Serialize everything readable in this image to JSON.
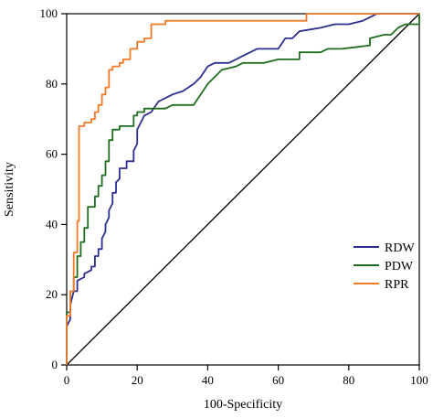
{
  "chart_data": {
    "type": "line",
    "title": "",
    "xlabel": "100-Specificity",
    "ylabel": "Sensitivity",
    "xlim": [
      0,
      100
    ],
    "ylim": [
      0,
      100
    ],
    "xticks": [
      0,
      20,
      40,
      60,
      80,
      100
    ],
    "yticks": [
      0,
      20,
      40,
      60,
      80,
      100
    ],
    "grid": false,
    "legend_position": "lower-right",
    "diagonal_reference": true,
    "series": [
      {
        "name": "RDW",
        "color": "#2b2f8f",
        "points": [
          [
            0,
            0
          ],
          [
            0,
            11
          ],
          [
            1,
            13
          ],
          [
            1,
            17
          ],
          [
            2,
            21
          ],
          [
            3,
            21
          ],
          [
            3,
            24
          ],
          [
            5,
            25
          ],
          [
            5,
            26
          ],
          [
            7,
            27
          ],
          [
            7,
            28
          ],
          [
            8,
            28
          ],
          [
            8,
            31
          ],
          [
            9,
            31
          ],
          [
            9,
            33
          ],
          [
            10,
            33
          ],
          [
            10,
            36
          ],
          [
            11,
            38
          ],
          [
            11,
            40
          ],
          [
            12,
            42
          ],
          [
            12,
            44
          ],
          [
            13,
            46
          ],
          [
            13,
            49
          ],
          [
            14,
            49
          ],
          [
            14,
            52
          ],
          [
            15,
            53
          ],
          [
            15,
            56
          ],
          [
            17,
            56
          ],
          [
            17,
            58
          ],
          [
            19,
            58
          ],
          [
            19,
            61
          ],
          [
            20,
            63
          ],
          [
            20,
            67
          ],
          [
            21,
            69
          ],
          [
            22,
            71
          ],
          [
            24,
            72
          ],
          [
            26,
            75
          ],
          [
            28,
            76
          ],
          [
            30,
            77
          ],
          [
            33,
            78
          ],
          [
            36,
            80
          ],
          [
            38,
            82
          ],
          [
            40,
            85
          ],
          [
            42,
            86
          ],
          [
            46,
            86
          ],
          [
            48,
            87
          ],
          [
            50,
            88
          ],
          [
            54,
            90
          ],
          [
            60,
            90
          ],
          [
            62,
            93
          ],
          [
            64,
            93
          ],
          [
            66,
            95
          ],
          [
            72,
            96
          ],
          [
            76,
            97
          ],
          [
            80,
            97
          ],
          [
            84,
            98
          ],
          [
            88,
            100
          ],
          [
            100,
            100
          ]
        ]
      },
      {
        "name": "PDW",
        "color": "#1f6e1f",
        "points": [
          [
            0,
            0
          ],
          [
            0,
            15
          ],
          [
            1,
            15
          ],
          [
            1,
            21
          ],
          [
            2,
            21
          ],
          [
            2,
            25
          ],
          [
            3,
            25
          ],
          [
            3,
            31
          ],
          [
            4,
            31
          ],
          [
            4,
            35
          ],
          [
            5,
            35
          ],
          [
            5,
            39
          ],
          [
            6,
            39
          ],
          [
            6,
            45
          ],
          [
            8,
            45
          ],
          [
            8,
            48
          ],
          [
            9,
            48
          ],
          [
            9,
            51
          ],
          [
            10,
            51
          ],
          [
            10,
            54
          ],
          [
            11,
            54
          ],
          [
            11,
            58
          ],
          [
            12,
            58
          ],
          [
            12,
            64
          ],
          [
            13,
            64
          ],
          [
            13,
            67
          ],
          [
            15,
            67
          ],
          [
            15,
            68
          ],
          [
            19,
            68
          ],
          [
            19,
            71
          ],
          [
            20,
            71
          ],
          [
            20,
            72
          ],
          [
            22,
            72
          ],
          [
            22,
            73
          ],
          [
            28,
            73
          ],
          [
            30,
            74
          ],
          [
            36,
            74
          ],
          [
            38,
            77
          ],
          [
            40,
            80
          ],
          [
            44,
            84
          ],
          [
            48,
            85
          ],
          [
            50,
            86
          ],
          [
            56,
            86
          ],
          [
            60,
            87
          ],
          [
            66,
            87
          ],
          [
            66,
            89
          ],
          [
            72,
            89
          ],
          [
            74,
            90
          ],
          [
            78,
            90
          ],
          [
            86,
            91
          ],
          [
            86,
            93
          ],
          [
            90,
            94
          ],
          [
            92,
            94
          ],
          [
            94,
            96
          ],
          [
            96,
            97
          ],
          [
            100,
            97
          ],
          [
            100,
            100
          ]
        ]
      },
      {
        "name": "RPR",
        "color": "#f07a28",
        "points": [
          [
            0,
            0
          ],
          [
            0,
            14
          ],
          [
            1,
            14
          ],
          [
            1,
            21
          ],
          [
            2,
            21
          ],
          [
            2,
            32
          ],
          [
            3,
            32
          ],
          [
            3,
            41
          ],
          [
            3.5,
            41
          ],
          [
            3.5,
            68
          ],
          [
            5,
            68
          ],
          [
            5,
            69
          ],
          [
            7,
            69
          ],
          [
            7,
            70
          ],
          [
            8,
            70
          ],
          [
            8,
            72
          ],
          [
            9,
            72
          ],
          [
            9,
            74
          ],
          [
            10,
            74
          ],
          [
            10,
            77
          ],
          [
            11,
            77
          ],
          [
            11,
            79
          ],
          [
            12,
            79
          ],
          [
            12,
            84
          ],
          [
            13,
            84
          ],
          [
            13,
            85
          ],
          [
            15,
            85
          ],
          [
            15,
            86
          ],
          [
            16,
            86
          ],
          [
            16,
            87
          ],
          [
            18,
            87
          ],
          [
            18,
            90
          ],
          [
            20,
            90
          ],
          [
            20,
            92
          ],
          [
            22,
            92
          ],
          [
            22,
            93
          ],
          [
            24,
            93
          ],
          [
            24,
            97
          ],
          [
            28,
            97
          ],
          [
            28,
            98
          ],
          [
            34,
            98
          ],
          [
            68,
            98
          ],
          [
            68,
            100
          ],
          [
            100,
            100
          ]
        ]
      }
    ]
  }
}
